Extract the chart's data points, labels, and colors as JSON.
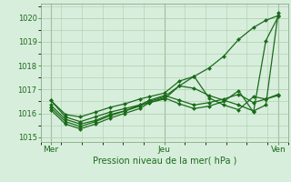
{
  "background_color": "#d8eedc",
  "plot_bg_color": "#d8eedc",
  "grid_color": "#aaccaa",
  "line_color": "#1a6b1a",
  "marker_color": "#1a6b1a",
  "xlabel": "Pression niveau de la mer( hPa )",
  "yticks": [
    1015,
    1016,
    1017,
    1018,
    1019,
    1020
  ],
  "xtick_labels": [
    "Mer",
    "Jeu",
    "Ven"
  ],
  "xtick_pos": [
    0.04,
    0.5,
    0.96
  ],
  "ylim": [
    1014.8,
    1020.6
  ],
  "xlim": [
    0.0,
    1.0
  ],
  "series": [
    [
      0.04,
      1016.55,
      0.1,
      1015.85,
      0.16,
      1015.65,
      0.22,
      1015.85,
      0.28,
      1016.05,
      0.34,
      1016.2,
      0.4,
      1016.35,
      0.44,
      1016.45,
      0.5,
      1016.6,
      0.56,
      1017.15,
      0.62,
      1017.55,
      0.68,
      1017.9,
      0.74,
      1018.4,
      0.8,
      1019.1,
      0.86,
      1019.6,
      0.91,
      1019.9,
      0.96,
      1020.1
    ],
    [
      0.04,
      1016.35,
      0.1,
      1015.75,
      0.16,
      1015.55,
      0.22,
      1015.7,
      0.28,
      1015.95,
      0.34,
      1016.1,
      0.4,
      1016.3,
      0.44,
      1016.5,
      0.5,
      1016.7,
      0.56,
      1017.15,
      0.62,
      1017.05,
      0.68,
      1016.75,
      0.74,
      1016.55,
      0.8,
      1016.35,
      0.86,
      1016.1,
      0.91,
      1016.35,
      0.96,
      1020.2
    ],
    [
      0.04,
      1016.25,
      0.1,
      1015.65,
      0.16,
      1015.45,
      0.22,
      1015.65,
      0.28,
      1015.9,
      0.34,
      1016.1,
      0.4,
      1016.35,
      0.44,
      1016.55,
      0.5,
      1016.75,
      0.56,
      1016.55,
      0.62,
      1016.35,
      0.68,
      1016.45,
      0.74,
      1016.6,
      0.8,
      1016.8,
      0.86,
      1016.45,
      0.91,
      1016.6,
      0.96,
      1016.8
    ],
    [
      0.04,
      1016.15,
      0.1,
      1015.55,
      0.16,
      1015.35,
      0.22,
      1015.55,
      0.28,
      1015.8,
      0.34,
      1016.0,
      0.4,
      1016.2,
      0.44,
      1016.45,
      0.5,
      1016.65,
      0.56,
      1016.4,
      0.62,
      1016.2,
      0.68,
      1016.3,
      0.74,
      1016.5,
      0.8,
      1016.95,
      0.86,
      1016.05,
      0.91,
      1019.05,
      0.96,
      1020.05
    ],
    [
      0.04,
      1016.55,
      0.1,
      1015.95,
      0.16,
      1015.85,
      0.22,
      1016.05,
      0.28,
      1016.25,
      0.34,
      1016.4,
      0.4,
      1016.6,
      0.44,
      1016.7,
      0.5,
      1016.85,
      0.56,
      1017.35,
      0.62,
      1017.55,
      0.68,
      1016.65,
      0.74,
      1016.35,
      0.8,
      1016.15,
      0.86,
      1016.7,
      0.91,
      1016.6,
      0.96,
      1016.75
    ]
  ]
}
